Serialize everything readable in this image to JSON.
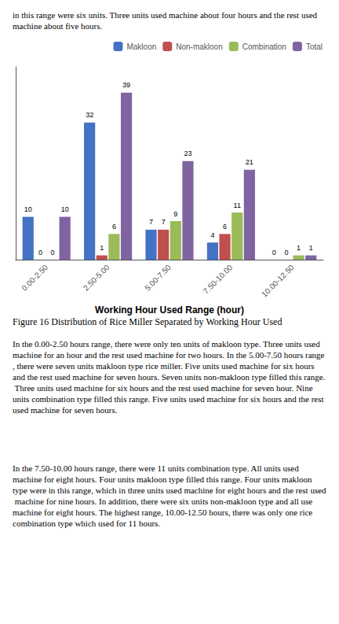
{
  "chart_data": {
    "type": "bar",
    "categories": [
      "0.00-2.50",
      "2.50-5.00",
      "5.00-7.50",
      "7.50-10.00",
      "10.00-12.50"
    ],
    "series": [
      {
        "name": "Makloon",
        "color": "#4472C4",
        "values": [
          10,
          32,
          7,
          4,
          0
        ]
      },
      {
        "name": "Non-makloon",
        "color": "#C0504D",
        "values": [
          0,
          1,
          7,
          6,
          0
        ]
      },
      {
        "name": "Combination",
        "color": "#9BBB59",
        "values": [
          0,
          6,
          9,
          11,
          1
        ]
      },
      {
        "name": "Total",
        "color": "#8064A2",
        "values": [
          10,
          39,
          23,
          21,
          1
        ]
      }
    ],
    "xlabel": "Working Hour Used Range (hour)",
    "ylim": [
      0,
      45
    ],
    "tick_labels": "x",
    "grid": false,
    "legend": "upper right",
    "data_labels": true,
    "annotations": [
      "in this range were six units. Three units used machine about four hours and the rest used machine about five hours.",
      "Figure 16 Distribution of Rice Miller Separated by Working Hour Used",
      "In the 0.00-2.50 hours range, there were only ten units of makloon type. Three units used machine for an hour and the rest used machine for two hours. In the 5.00-7.50 hours range, there were seven units makloon type rice miller. Five units used machine for six hours and the rest used machine for seven hours. Seven units non-makloon type filled this range. Three units used machine for six hours and the rest used machine for seven hour. Nine units combination type filled this range. Five units used machine for six hours and the rest used machine for seven hours.",
      "In the 7.50-10.00 hours range, there were 11 units combination type. All units used machine for eight hours. Four units makloon type filled this range. Four units makloon type were in this range, which in three units used machine for eight hours and the rest used machine for nine hours. In addition, there were six units non-makloon type and all use machine for eight hours. The highest range, 10.00-12.50 hours, there was only one rice combination type which used for 11 hours."
    ]
  }
}
